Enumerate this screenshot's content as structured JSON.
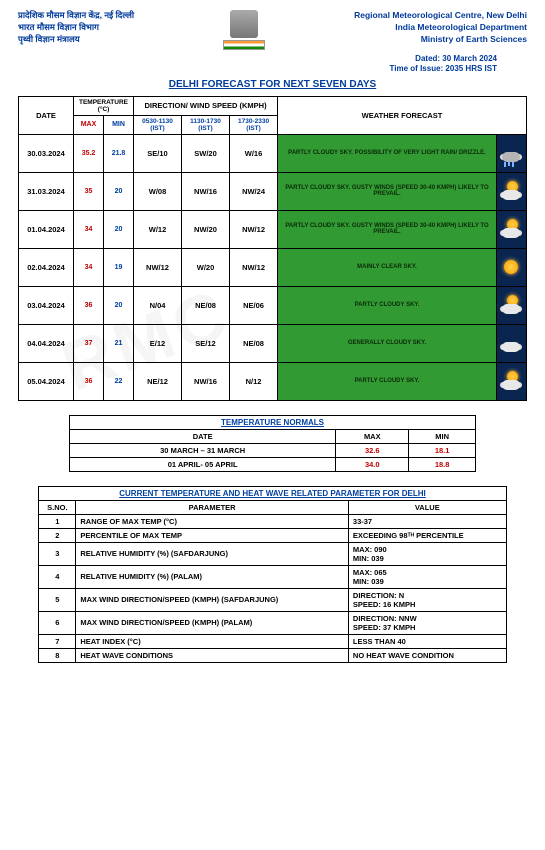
{
  "header": {
    "left_line1": "प्रादेशिक मौसम विज्ञान केंद्र, नई दिल्ली",
    "left_line2": "भारत मौसम विज्ञान विभाग",
    "left_line3": "पृथ्वी विज्ञान मंत्रालय",
    "right_line1": "Regional Meteorological Centre, New Delhi",
    "right_line2": "India Meteorological Department",
    "right_line3": "Ministry of Earth Sciences",
    "dated": "Dated: 30 March 2024",
    "time_of_issue": "Time of Issue: 2035 HRS IST"
  },
  "title": "DELHI FORECAST FOR NEXT SEVEN DAYS",
  "forecast_table": {
    "head": {
      "date": "DATE",
      "temp": "TEMPERATURE (°C)",
      "max": "MAX",
      "min": "MIN",
      "dir": "DIRECTION/ WIND SPEED (KMPH)",
      "t1": "0530-1130 (IST)",
      "t2": "1130-1730 (IST)",
      "t3": "1730-2330 (IST)",
      "wf": "WEATHER FORECAST"
    },
    "rows": [
      {
        "date": "30.03.2024",
        "max": "35.2",
        "min": "21.8",
        "w1": "SE/10",
        "w2": "SW/20",
        "w3": "W/16",
        "wf": "PARTLY CLOUDY SKY. POSSIBILITY OF VERY LIGHT RAIN/ DRIZZLE.",
        "icon": "rain"
      },
      {
        "date": "31.03.2024",
        "max": "35",
        "min": "20",
        "w1": "W/08",
        "w2": "NW/16",
        "w3": "NW/24",
        "wf": "PARTLY CLOUDY SKY. GUSTY WINDS (SPEED 30-40 KMPH) LIKELY TO PREVAIL.",
        "icon": "sun-cloud"
      },
      {
        "date": "01.04.2024",
        "max": "34",
        "min": "20",
        "w1": "W/12",
        "w2": "NW/20",
        "w3": "NW/12",
        "wf": "PARTLY CLOUDY SKY. GUSTY WINDS (SPEED 30-40 KMPH) LIKELY TO PREVAIL.",
        "icon": "sun-cloud"
      },
      {
        "date": "02.04.2024",
        "max": "34",
        "min": "19",
        "w1": "NW/12",
        "w2": "W/20",
        "w3": "NW/12",
        "wf": "MAINLY CLEAR SKY.",
        "icon": "sun"
      },
      {
        "date": "03.04.2024",
        "max": "36",
        "min": "20",
        "w1": "N/04",
        "w2": "NE/08",
        "w3": "NE/06",
        "wf": "PARTLY CLOUDY SKY.",
        "icon": "sun-cloud"
      },
      {
        "date": "04.04.2024",
        "max": "37",
        "min": "21",
        "w1": "E/12",
        "w2": "SE/12",
        "w3": "NE/08",
        "wf": "GENERALLY CLOUDY SKY.",
        "icon": "cloud"
      },
      {
        "date": "05.04.2024",
        "max": "36",
        "min": "22",
        "w1": "NE/12",
        "w2": "NW/16",
        "w3": "N/12",
        "wf": "PARTLY CLOUDY SKY.",
        "icon": "sun-cloud"
      }
    ]
  },
  "normals": {
    "title": "TEMPERATURE NORMALS",
    "head_date": "DATE",
    "head_max": "MAX",
    "head_min": "MIN",
    "rows": [
      {
        "date": "30 MARCH – 31 MARCH",
        "max": "32.6",
        "min": "18.1"
      },
      {
        "date": "01 APRIL- 05 APRIL",
        "max": "34.0",
        "min": "18.8"
      }
    ]
  },
  "params": {
    "title": "CURRENT TEMPERATURE AND HEAT WAVE RELATED PARAMETER FOR DELHI",
    "head_sno": "S.NO.",
    "head_param": "PARAMETER",
    "head_value": "VALUE",
    "rows": [
      {
        "n": "1",
        "p": "RANGE OF MAX TEMP (°C)",
        "v": "33-37"
      },
      {
        "n": "2",
        "p": "PERCENTILE OF MAX TEMP",
        "v": "EXCEEDING 98ᵀᴴ PERCENTILE"
      },
      {
        "n": "3",
        "p": "RELATIVE HUMIDITY (%) (SAFDARJUNG)",
        "v": "MAX: 090\nMIN: 039"
      },
      {
        "n": "4",
        "p": "RELATIVE HUMIDITY (%) (PALAM)",
        "v": "MAX: 065\nMIN: 039"
      },
      {
        "n": "5",
        "p": "MAX WIND DIRECTION/SPEED (KMPH) (SAFDARJUNG)",
        "v": "DIRECTION: N\nSPEED: 16 KMPH"
      },
      {
        "n": "6",
        "p": "MAX WIND DIRECTION/SPEED (KMPH) (PALAM)",
        "v": "DIRECTION: NNW\nSPEED: 37 KMPH"
      },
      {
        "n": "7",
        "p": "HEAT INDEX (°C)",
        "v": "LESS THAN 40"
      },
      {
        "n": "8",
        "p": "HEAT WAVE CONDITIONS",
        "v": "NO HEAT WAVE CONDITION"
      }
    ]
  },
  "colors": {
    "header_blue": "#003a9b",
    "max_red": "#c00000",
    "min_blue": "#0040a0",
    "wf_green": "#329a32",
    "icon_bg": "#0a2550"
  }
}
